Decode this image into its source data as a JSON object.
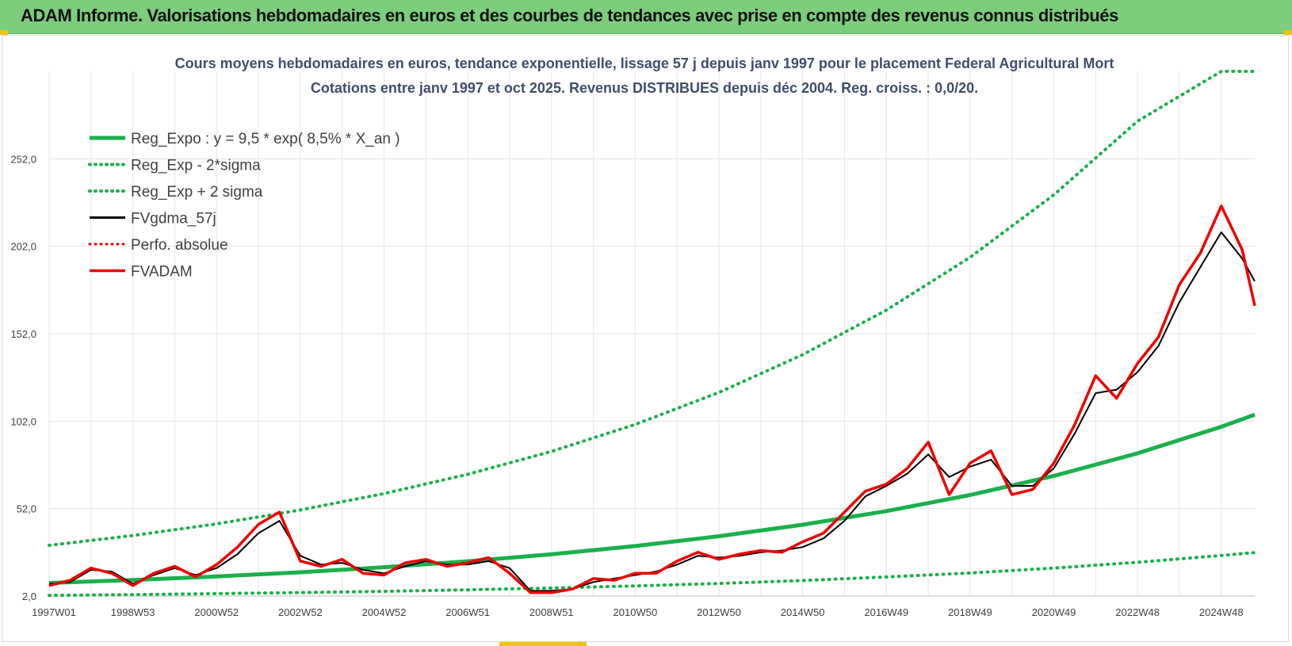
{
  "banner": {
    "title": "ADAM Informe. Valorisations hebdomadaires en euros et des courbes de tendances avec prise en compte des revenus connus distribués"
  },
  "chart_data": {
    "type": "line",
    "title_line1": "Cours moyens hebdomadaires en euros, tendance exponentielle, lissage 57 j depuis janv 1997 pour le placement Federal Agricultural Mort",
    "title_line2": "Cotations entre janv 1997 et oct 2025. Revenus DISTRIBUES depuis déc 2004. Reg. croiss. : 0,0/20.",
    "xlabel": "",
    "ylabel": "",
    "x_tick_labels": [
      "1997W01",
      "1998W53",
      "2000W52",
      "2002W52",
      "2004W52",
      "2006W51",
      "2008W51",
      "2010W50",
      "2012W50",
      "2014W50",
      "2016W49",
      "2018W49",
      "2020W49",
      "2022W48",
      "2024W48"
    ],
    "x_tick_years": [
      1997.0,
      1999.0,
      2001.0,
      2003.0,
      2005.0,
      2007.0,
      2009.0,
      2011.0,
      2013.0,
      2015.0,
      2017.0,
      2019.0,
      2021.0,
      2023.0,
      2025.0
    ],
    "x_range": [
      1997.0,
      2025.8
    ],
    "y_tick_labels": [
      "2,0",
      "52,0",
      "102,0",
      "152,0",
      "202,0",
      "252,0"
    ],
    "y_tick_values": [
      2,
      52,
      102,
      152,
      202,
      252
    ],
    "ylim": [
      2,
      302
    ],
    "grid": true,
    "legend_position": "top-left",
    "series": [
      {
        "name": "Reg_Expo : y = 9,5 * exp( 8,5% *  X_an )",
        "color": "#1ab04b",
        "style": "solid",
        "width": 5,
        "x": [
          1997,
          1999,
          2001,
          2003,
          2005,
          2007,
          2009,
          2011,
          2013,
          2015,
          2017,
          2019,
          2021,
          2023,
          2025,
          2025.8
        ],
        "y": [
          9.5,
          11.2,
          13.2,
          15.6,
          18.5,
          21.9,
          25.9,
          30.6,
          36.2,
          42.8,
          50.6,
          59.8,
          70.7,
          83.6,
          98.8,
          105.7
        ]
      },
      {
        "name": "Reg_Exp - 2*sigma",
        "color": "#1ab04b",
        "style": "dotted",
        "width": 4,
        "x": [
          1997,
          1999,
          2001,
          2003,
          2005,
          2007,
          2009,
          2011,
          2013,
          2015,
          2017,
          2019,
          2021,
          2023,
          2025,
          2025.8
        ],
        "y": [
          2.4,
          2.8,
          3.4,
          4.0,
          4.7,
          5.6,
          6.6,
          7.8,
          9.2,
          10.9,
          12.9,
          15.2,
          18.0,
          21.3,
          25.2,
          26.9
        ]
      },
      {
        "name": "Reg_Exp + 2 sigma",
        "color": "#1ab04b",
        "style": "dotted",
        "width": 4,
        "x": [
          1997,
          1999,
          2001,
          2003,
          2005,
          2007,
          2009,
          2011,
          2013,
          2015,
          2017,
          2019,
          2021,
          2023,
          2025,
          2025.8
        ],
        "y": [
          31.0,
          36.6,
          43.3,
          51.2,
          60.6,
          71.6,
          84.7,
          100.1,
          118.4,
          140.0,
          165.5,
          195.7,
          231.4,
          273.5,
          302,
          302
        ]
      },
      {
        "name": "FVgdma_57j",
        "color": "#000000",
        "style": "solid",
        "width": 2,
        "x": [
          1997.0,
          1997.5,
          1998.0,
          1998.5,
          1999.0,
          1999.5,
          2000.0,
          2000.5,
          2001.0,
          2001.5,
          2002.0,
          2002.5,
          2003.0,
          2003.5,
          2004.0,
          2004.5,
          2005.0,
          2005.5,
          2006.0,
          2006.5,
          2007.0,
          2007.5,
          2008.0,
          2008.5,
          2009.0,
          2009.5,
          2010.0,
          2010.5,
          2011.0,
          2011.5,
          2012.0,
          2012.5,
          2013.0,
          2013.5,
          2014.0,
          2014.5,
          2015.0,
          2015.5,
          2016.0,
          2016.5,
          2017.0,
          2017.5,
          2018.0,
          2018.5,
          2019.0,
          2019.5,
          2020.0,
          2020.5,
          2021.0,
          2021.5,
          2022.0,
          2022.5,
          2023.0,
          2023.5,
          2024.0,
          2024.5,
          2025.0,
          2025.5,
          2025.8
        ],
        "y": [
          9,
          10,
          17,
          16,
          9,
          14,
          18,
          14,
          18,
          26,
          38,
          45,
          25,
          20,
          21,
          17,
          15,
          19,
          22,
          20,
          20,
          22,
          18,
          5,
          5,
          6,
          10,
          12,
          14,
          16,
          20,
          25,
          24,
          25,
          27,
          28,
          30,
          35,
          45,
          59,
          65,
          72,
          83,
          70,
          76,
          80,
          65,
          65,
          75,
          95,
          118,
          120,
          130,
          145,
          170,
          190,
          210,
          195,
          182
        ]
      },
      {
        "name": "Perfo. absolue",
        "color": "#e00000",
        "style": "dotted",
        "width": 3,
        "x": [],
        "y": []
      },
      {
        "name": "FVADAM",
        "color": "#ee0000",
        "style": "solid",
        "width": 3.5,
        "x": [
          1997.0,
          1997.5,
          1998.0,
          1998.5,
          1999.0,
          1999.5,
          2000.0,
          2000.5,
          2001.0,
          2001.5,
          2002.0,
          2002.5,
          2003.0,
          2003.5,
          2004.0,
          2004.5,
          2005.0,
          2005.5,
          2006.0,
          2006.5,
          2007.0,
          2007.5,
          2008.0,
          2008.5,
          2009.0,
          2009.5,
          2010.0,
          2010.5,
          2011.0,
          2011.5,
          2012.0,
          2012.5,
          2013.0,
          2013.5,
          2014.0,
          2014.5,
          2015.0,
          2015.5,
          2016.0,
          2016.5,
          2017.0,
          2017.5,
          2018.0,
          2018.5,
          2019.0,
          2019.5,
          2020.0,
          2020.5,
          2021.0,
          2021.5,
          2022.0,
          2022.5,
          2023.0,
          2023.5,
          2024.0,
          2024.5,
          2025.0,
          2025.5,
          2025.8
        ],
        "y": [
          8,
          11,
          18,
          15,
          8,
          15,
          19,
          13,
          20,
          30,
          43,
          50,
          22,
          19,
          23,
          15,
          14,
          21,
          23,
          19,
          21,
          24,
          15,
          4,
          4,
          6,
          12,
          11,
          15,
          15,
          22,
          27,
          23,
          26,
          28,
          27,
          33,
          38,
          50,
          62,
          66,
          75,
          90,
          60,
          78,
          85,
          60,
          63,
          78,
          100,
          128,
          115,
          135,
          150,
          180,
          198,
          225,
          200,
          168
        ]
      }
    ]
  }
}
